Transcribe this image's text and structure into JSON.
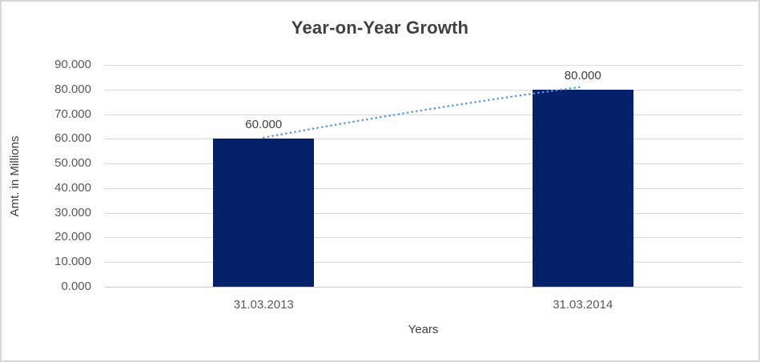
{
  "chart_data": {
    "type": "bar",
    "title": "Year-on-Year Growth",
    "categories": [
      "31.03.2013",
      "31.03.2014"
    ],
    "values": [
      60000,
      80000
    ],
    "value_labels": [
      "60.000",
      "80.000"
    ],
    "xlabel": "Years",
    "ylabel": "Amt. in Millions",
    "ylim": [
      0,
      90000
    ],
    "ytick_step": 10000,
    "ytick_labels_top_down": [
      "90.000",
      "80.000",
      "70.000",
      "60.000",
      "50.000",
      "40.000",
      "30.000",
      "20.000",
      "10.000",
      "0.000"
    ],
    "grid": true,
    "legend_position": "none",
    "trendline": {
      "type": "linear",
      "style": "dotted",
      "between": [
        "31.03.2013",
        "31.03.2014"
      ]
    },
    "colors": {
      "bar": "#04216a",
      "trendline": "#5b9bd5",
      "gridline": "#d9d9d9",
      "axis_line": "#cccccc",
      "title_text": "#404040",
      "tick_text": "#595959"
    }
  }
}
